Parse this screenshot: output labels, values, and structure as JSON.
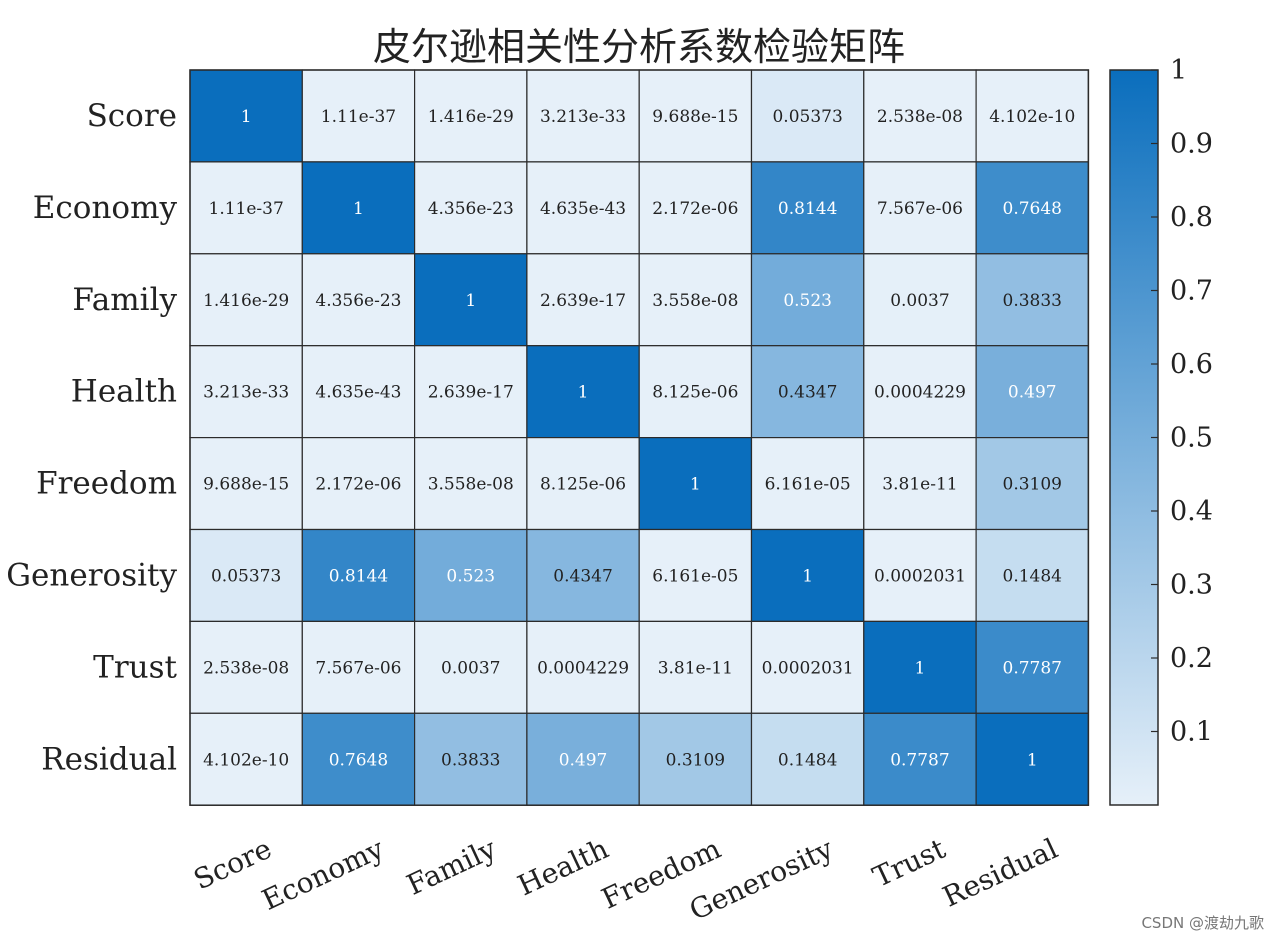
{
  "chart_data": {
    "type": "heatmap",
    "title": "皮尔逊相关性分析系数检验矩阵",
    "rows": [
      "Score",
      "Economy",
      "Family",
      "Health",
      "Freedom",
      "Generosity",
      "Trust",
      "Residual"
    ],
    "columns": [
      "Score",
      "Economy",
      "Family",
      "Health",
      "Freedom",
      "Generosity",
      "Trust",
      "Residual"
    ],
    "cell_labels": [
      [
        "1",
        "1.11e-37",
        "1.416e-29",
        "3.213e-33",
        "9.688e-15",
        "0.05373",
        "2.538e-08",
        "4.102e-10"
      ],
      [
        "1.11e-37",
        "1",
        "4.356e-23",
        "4.635e-43",
        "2.172e-06",
        "0.8144",
        "7.567e-06",
        "0.7648"
      ],
      [
        "1.416e-29",
        "4.356e-23",
        "1",
        "2.639e-17",
        "3.558e-08",
        "0.523",
        "0.0037",
        "0.3833"
      ],
      [
        "3.213e-33",
        "4.635e-43",
        "2.639e-17",
        "1",
        "8.125e-06",
        "0.4347",
        "0.0004229",
        "0.497"
      ],
      [
        "9.688e-15",
        "2.172e-06",
        "3.558e-08",
        "8.125e-06",
        "1",
        "6.161e-05",
        "3.81e-11",
        "0.3109"
      ],
      [
        "0.05373",
        "0.8144",
        "0.523",
        "0.4347",
        "6.161e-05",
        "1",
        "0.0002031",
        "0.1484"
      ],
      [
        "2.538e-08",
        "7.567e-06",
        "0.0037",
        "0.0004229",
        "3.81e-11",
        "0.0002031",
        "1",
        "0.7787"
      ],
      [
        "4.102e-10",
        "0.7648",
        "0.3833",
        "0.497",
        "0.3109",
        "0.1484",
        "0.7787",
        "1"
      ]
    ],
    "colorbar": {
      "ticks": [
        "0.1",
        "0.2",
        "0.3",
        "0.4",
        "0.5",
        "0.6",
        "0.7",
        "0.8",
        "0.9",
        "1"
      ],
      "range": [
        0,
        1
      ],
      "color_low": "#e6f0f9",
      "color_high": "#0a6ebd"
    },
    "text_color_dark": "#222222",
    "text_color_light": "#ffffff",
    "gridline_color": "#2b2b2b"
  },
  "watermark": "CSDN @渡劫九歌"
}
